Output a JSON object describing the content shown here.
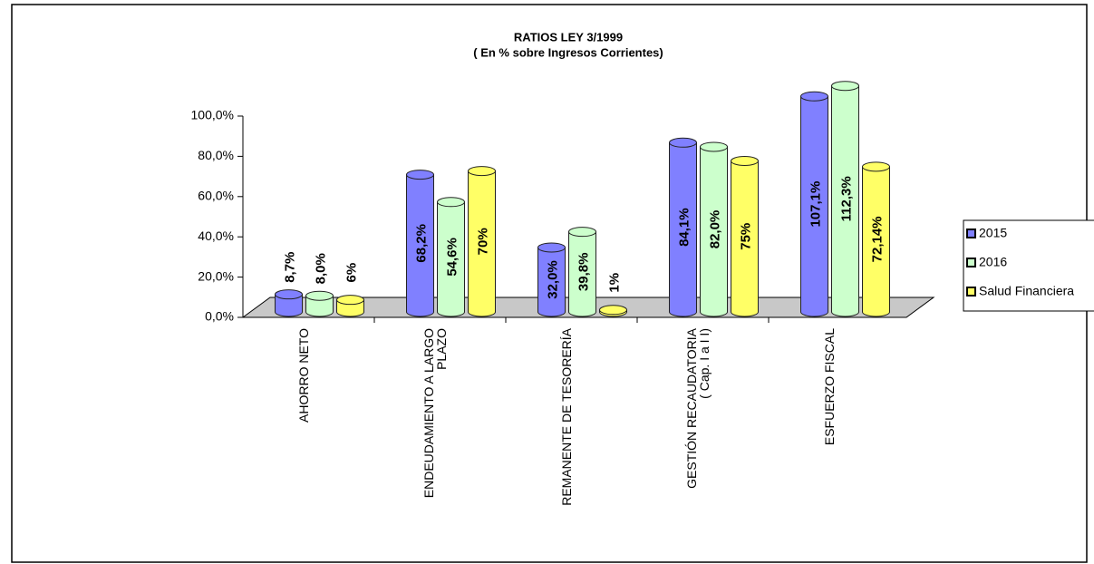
{
  "chart_data": {
    "type": "bar3d",
    "title": [
      "RATIOS LEY 3/1999",
      "( En % sobre Ingresos Corrientes)"
    ],
    "categories": [
      [
        "AHORRO NETO"
      ],
      [
        "ENDEUDAMIENTO A LARGO",
        "PLAZO"
      ],
      [
        "REMANENTE DE TESORERÍA"
      ],
      [
        "GESTIÓN RECAUDATORIA",
        "( Cap. I a I I)"
      ],
      [
        "ESFUERZO FISCAL"
      ]
    ],
    "series": [
      {
        "name": "2015",
        "color": "#8080ff",
        "values": [
          8.7,
          68.2,
          32.0,
          84.1,
          107.1
        ],
        "value_labels": [
          "8,7%",
          "68,2%",
          "32,0%",
          "84,1%",
          "107,1%"
        ]
      },
      {
        "name": "2016",
        "color": "#ccffcc",
        "values": [
          8.0,
          54.6,
          39.8,
          82.0,
          112.3
        ],
        "value_labels": [
          "8,0%",
          "54,6%",
          "39,8%",
          "82,0%",
          "112,3%"
        ]
      },
      {
        "name": "Salud Financiera",
        "color": "#ffff66",
        "values": [
          6,
          70,
          1,
          75,
          72.14
        ],
        "value_labels": [
          "6%",
          "70%",
          "1%",
          "75%",
          "72,14%"
        ]
      }
    ],
    "ylim": [
      0,
      100
    ],
    "yticks": [
      {
        "value": 0,
        "label": "0,0%"
      },
      {
        "value": 20,
        "label": "20,0%"
      },
      {
        "value": 40,
        "label": "40,0%"
      },
      {
        "value": 60,
        "label": "60,0%"
      },
      {
        "value": 80,
        "label": "80,0%"
      },
      {
        "value": 100,
        "label": "100,0%"
      }
    ],
    "legend": "right"
  }
}
